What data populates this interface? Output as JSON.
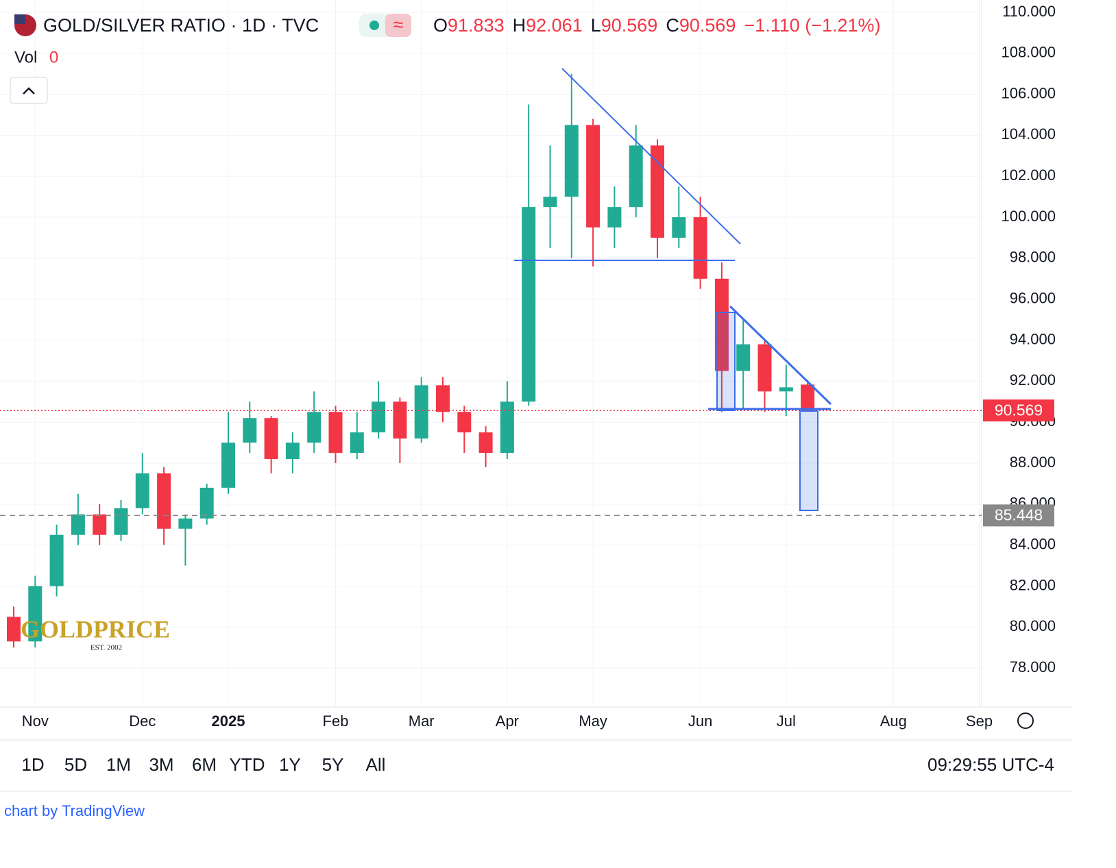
{
  "header": {
    "flag_symbol": "GOLD/SILVER RATIO · 1D · TVC",
    "o_label": "O",
    "open": "91.833",
    "h_label": "H",
    "high": "92.061",
    "l_label": "L",
    "low": "90.569",
    "c_label": "C",
    "close": "90.569",
    "change": "−1.110 (−1.21%)",
    "vol_label": "Vol",
    "vol": "0"
  },
  "chart_data": {
    "type": "candlestick",
    "categories": [
      null,
      "Nov",
      null,
      null,
      null,
      null,
      "Dec",
      null,
      null,
      null,
      "2025",
      null,
      null,
      null,
      null,
      "Feb",
      null,
      null,
      null,
      "Mar",
      null,
      null,
      null,
      "Apr",
      null,
      null,
      null,
      "May",
      null,
      null,
      null,
      null,
      "Jun",
      null,
      null,
      null,
      "Jul",
      null,
      null,
      null,
      null,
      "Aug",
      null,
      null,
      null,
      "Sep"
    ],
    "open": [
      80.5,
      79.3,
      82.0,
      84.5,
      85.5,
      84.5,
      85.8,
      87.5,
      84.8,
      85.3,
      86.8,
      89.0,
      90.2,
      88.2,
      89.0,
      90.5,
      88.5,
      89.5,
      91.0,
      89.2,
      91.8,
      90.5,
      89.5,
      88.5,
      91.0,
      100.5,
      101.0,
      104.5,
      99.5,
      100.5,
      103.5,
      99.0,
      100.0,
      97.0,
      92.5,
      93.8,
      91.5,
      91.833,
      null,
      null,
      null,
      null,
      null,
      null,
      null,
      null
    ],
    "high": [
      81.0,
      82.5,
      85.0,
      86.5,
      86.0,
      86.2,
      88.5,
      87.8,
      85.5,
      87.0,
      90.5,
      91.0,
      90.3,
      89.5,
      91.5,
      90.8,
      90.5,
      92.0,
      91.2,
      92.2,
      92.2,
      90.8,
      89.8,
      92.0,
      105.5,
      103.5,
      107.0,
      104.8,
      101.5,
      104.5,
      103.8,
      101.5,
      101.0,
      97.8,
      95.0,
      94.0,
      92.8,
      92.061,
      null,
      null,
      null,
      null,
      null,
      null,
      null,
      null
    ],
    "low": [
      79.0,
      79.0,
      81.5,
      84.0,
      84.0,
      84.2,
      85.5,
      84.0,
      83.0,
      85.0,
      86.5,
      88.5,
      87.5,
      87.5,
      88.5,
      88.0,
      88.2,
      89.2,
      88.0,
      89.0,
      90.0,
      88.5,
      87.8,
      88.2,
      90.8,
      98.5,
      98.0,
      97.6,
      98.5,
      100.0,
      98.0,
      98.5,
      96.5,
      90.5,
      90.6,
      90.5,
      90.3,
      90.569,
      null,
      null,
      null,
      null,
      null,
      null,
      null,
      null
    ],
    "close": [
      79.3,
      82.0,
      84.5,
      85.5,
      84.5,
      85.8,
      87.5,
      84.8,
      85.3,
      86.8,
      89.0,
      90.2,
      88.2,
      89.0,
      90.5,
      88.5,
      89.5,
      91.0,
      89.2,
      91.8,
      90.5,
      89.5,
      88.5,
      91.0,
      100.5,
      101.0,
      104.5,
      99.5,
      100.5,
      103.5,
      99.0,
      100.0,
      97.0,
      92.5,
      93.8,
      91.5,
      91.7,
      90.569,
      null,
      null,
      null,
      null,
      null,
      null,
      null,
      null
    ],
    "up_color": "#22ab94",
    "down_color": "#f23645",
    "ylim": [
      76.1,
      110.6
    ],
    "yticks": [
      {
        "value": 78,
        "label": "78.000"
      },
      {
        "value": 80,
        "label": "80.000"
      },
      {
        "value": 82,
        "label": "82.000"
      },
      {
        "value": 84,
        "label": "84.000"
      },
      {
        "value": 86,
        "label": "86.000"
      },
      {
        "value": 88,
        "label": "88.000"
      },
      {
        "value": 90,
        "label": "90.000"
      },
      {
        "value": 92,
        "label": "92.000"
      },
      {
        "value": 94,
        "label": "94.000"
      },
      {
        "value": 96,
        "label": "96.000"
      },
      {
        "value": 98,
        "label": "98.000"
      },
      {
        "value": 100,
        "label": "100.000"
      },
      {
        "value": 102,
        "label": "102.000"
      },
      {
        "value": 104,
        "label": "104.000"
      },
      {
        "value": 106,
        "label": "106.000"
      },
      {
        "value": 108,
        "label": "108.000"
      },
      {
        "value": 110,
        "label": "110.000"
      }
    ],
    "grid": true,
    "price_lines": [
      {
        "value": 90.569,
        "label": "90.569",
        "color": "#f23645",
        "style": "dotted"
      },
      {
        "value": 85.448,
        "label": "85.448",
        "color": "#888888",
        "style": "dashed"
      }
    ]
  },
  "footer": {
    "ranges": [
      "1D",
      "5D",
      "1M",
      "3M",
      "6M",
      "YTD",
      "1Y",
      "5Y",
      "All"
    ],
    "time": "09:29:55 UTC-4",
    "credit": "chart by TradingView",
    "logo": "GOLDPRICE",
    "logo_sub": "EST. 2002"
  }
}
